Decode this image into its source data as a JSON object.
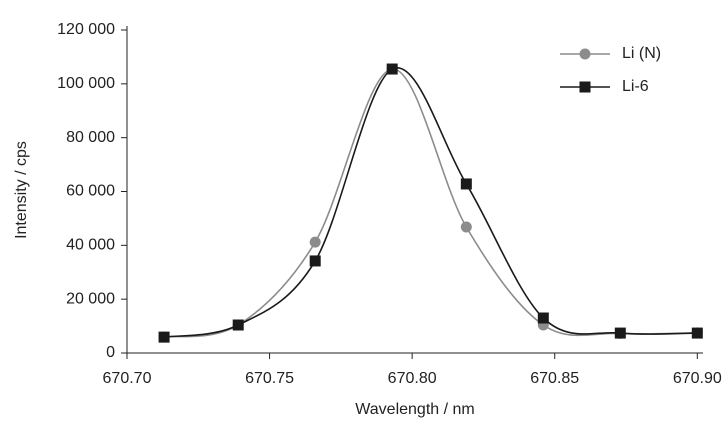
{
  "chart_data": {
    "type": "line",
    "x_label": "Wavelength / nm",
    "y_label": "Intensity / cps",
    "x": [
      670.713,
      670.739,
      670.766,
      670.793,
      670.819,
      670.846,
      670.873,
      670.9
    ],
    "series": [
      {
        "name": "Li (N)",
        "color": "#8c8c8c",
        "marker": "circle",
        "values": [
          5900,
          10400,
          41200,
          105500,
          46800,
          10400,
          7300,
          7500
        ]
      },
      {
        "name": "Li-6",
        "color": "#1a1a1a",
        "marker": "square",
        "values": [
          5900,
          10400,
          34200,
          105500,
          62800,
          13000,
          7400,
          7400
        ]
      }
    ],
    "xlim": [
      670.7,
      670.902
    ],
    "xticks": [
      {
        "value": 670.7,
        "label": "670.70"
      },
      670.75,
      {
        "value": 670.8,
        "label": "670.80"
      },
      670.85,
      {
        "value": 670.9,
        "label": "670.90"
      }
    ],
    "ylim": [
      0,
      120000
    ],
    "yticks": [
      0,
      {
        "value": 20000,
        "label": "20 000"
      },
      {
        "value": 40000,
        "label": "40 000"
      },
      {
        "value": 60000,
        "label": "60 000"
      },
      {
        "value": 80000,
        "label": "80 000"
      },
      {
        "value": 100000,
        "label": "100 000"
      },
      {
        "value": 120000,
        "label": "120 000"
      }
    ],
    "legend": "upper right"
  }
}
